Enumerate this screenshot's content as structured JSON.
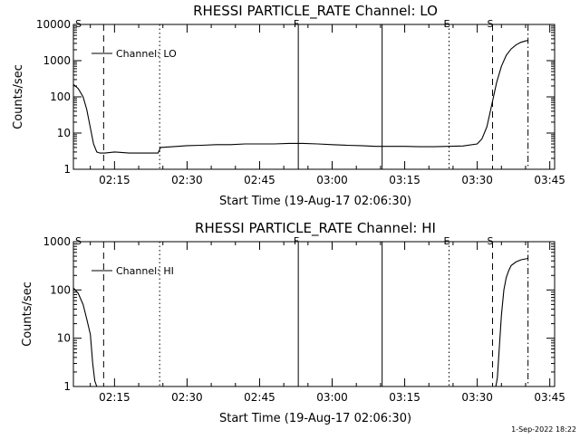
{
  "footer_timestamp": "1-Sep-2022 18:22",
  "chart_data": [
    {
      "type": "line",
      "title": "RHESSI PARTICLE_RATE Channel: LO",
      "xlabel": "Start Time (19-Aug-17 02:06:30)",
      "ylabel": "Counts/sec",
      "y_scale": "log",
      "ylim": [
        1,
        10000
      ],
      "y_ticks": [
        1,
        10,
        100,
        1000,
        10000
      ],
      "y_tick_labels": [
        "1",
        "10",
        "100",
        "1000",
        "10000"
      ],
      "xlim": [
        "02:06:30",
        "03:46:00"
      ],
      "x_ticks": [
        "02:15",
        "02:30",
        "02:45",
        "03:00",
        "03:15",
        "03:30",
        "03:45"
      ],
      "legend": {
        "position": "top-left",
        "entries": [
          "Channel: LO"
        ]
      },
      "event_markers": [
        {
          "label": "S",
          "time": "02:06:30",
          "style": "none"
        },
        {
          "label": "",
          "time": "02:12:45",
          "style": "dashed"
        },
        {
          "label": "",
          "time": "02:24:20",
          "style": "dotted"
        },
        {
          "label": "F",
          "time": "02:53:00",
          "style": "solid"
        },
        {
          "label": "",
          "time": "03:10:20",
          "style": "solid"
        },
        {
          "label": "E",
          "time": "03:24:10",
          "style": "dotted"
        },
        {
          "label": "S",
          "time": "03:33:10",
          "style": "dashed"
        },
        {
          "label": "",
          "time": "03:40:30",
          "style": "dashdot"
        }
      ],
      "series": [
        {
          "name": "Channel: LO",
          "x": [
            "02:06:30",
            "02:07:30",
            "02:08:30",
            "02:09:15",
            "02:10:00",
            "02:10:40",
            "02:11:20",
            "02:12:00",
            "02:13:00",
            "02:15:00",
            "02:18:00",
            "02:21:00",
            "02:24:00",
            "02:24:30",
            "02:27:00",
            "02:30:00",
            "02:33:00",
            "02:36:00",
            "02:39:00",
            "02:42:00",
            "02:45:00",
            "02:48:00",
            "02:51:00",
            "02:54:00",
            "02:57:00",
            "03:00:00",
            "03:03:00",
            "03:06:00",
            "03:09:00",
            "03:12:00",
            "03:15:00",
            "03:18:00",
            "03:21:00",
            "03:24:00",
            "03:27:00",
            "03:30:00",
            "03:31:00",
            "03:32:00",
            "03:33:00",
            "03:34:00",
            "03:35:00",
            "03:36:00",
            "03:37:00",
            "03:38:00",
            "03:39:00",
            "03:40:00",
            "03:40:30"
          ],
          "values": [
            220,
            170,
            100,
            45,
            14,
            5,
            3,
            2.8,
            2.8,
            3,
            2.8,
            2.8,
            2.8,
            4,
            4.2,
            4.5,
            4.6,
            4.8,
            4.8,
            5,
            5,
            5,
            5.2,
            5.2,
            5,
            4.8,
            4.6,
            4.5,
            4.3,
            4.3,
            4.3,
            4.2,
            4.2,
            4.3,
            4.4,
            5,
            7,
            15,
            60,
            250,
            700,
            1400,
            2100,
            2700,
            3200,
            3500,
            3600
          ]
        }
      ]
    },
    {
      "type": "line",
      "title": "RHESSI PARTICLE_RATE Channel: HI",
      "xlabel": "Start Time (19-Aug-17 02:06:30)",
      "ylabel": "Counts/sec",
      "y_scale": "log",
      "ylim": [
        1,
        1000
      ],
      "y_ticks": [
        1,
        10,
        100,
        1000
      ],
      "y_tick_labels": [
        "1",
        "10",
        "100",
        "1000"
      ],
      "xlim": [
        "02:06:30",
        "03:46:00"
      ],
      "x_ticks": [
        "02:15",
        "02:30",
        "02:45",
        "03:00",
        "03:15",
        "03:30",
        "03:45"
      ],
      "legend": {
        "position": "top-left",
        "entries": [
          "Channel: HI"
        ]
      },
      "event_markers": [
        {
          "label": "S",
          "time": "02:06:30",
          "style": "none"
        },
        {
          "label": "",
          "time": "02:12:45",
          "style": "dashed"
        },
        {
          "label": "",
          "time": "02:24:20",
          "style": "dotted"
        },
        {
          "label": "F",
          "time": "02:53:00",
          "style": "solid"
        },
        {
          "label": "",
          "time": "03:10:20",
          "style": "solid"
        },
        {
          "label": "E",
          "time": "03:24:10",
          "style": "dotted"
        },
        {
          "label": "S",
          "time": "03:33:10",
          "style": "dashed"
        },
        {
          "label": "",
          "time": "03:40:30",
          "style": "dashdot"
        }
      ],
      "series": [
        {
          "name": "Channel: HI",
          "x": [
            "02:06:30",
            "02:07:30",
            "02:08:30",
            "02:09:15",
            "02:10:00",
            "02:10:30",
            "02:10:55",
            "02:11:20",
            "03:33:50",
            "03:34:10",
            "03:34:30",
            "03:35:00",
            "03:35:30",
            "03:36:00",
            "03:36:30",
            "03:37:00",
            "03:38:00",
            "03:39:00",
            "03:40:00",
            "03:40:30"
          ],
          "values": [
            110,
            85,
            50,
            25,
            12,
            3,
            1.3,
            1,
            1,
            1.5,
            5,
            30,
            100,
            180,
            250,
            320,
            380,
            420,
            440,
            450
          ]
        }
      ]
    }
  ]
}
